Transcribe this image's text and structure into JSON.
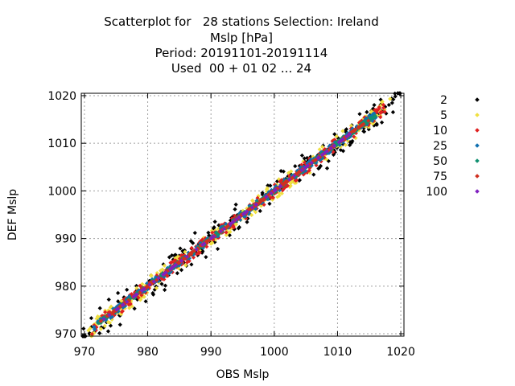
{
  "chart_data": {
    "type": "scatter",
    "title_lines": [
      "Scatterplot for   28 stations Selection: Ireland",
      "Mslp [hPa]",
      "Period: 20191101-20191114",
      "Used  00 + 01 02 ... 24"
    ],
    "xlabel": "OBS Mslp",
    "ylabel": "DEF Mslp",
    "xlim": [
      969.5,
      1020.5
    ],
    "ylim": [
      969.5,
      1020.5
    ],
    "xticks": [
      970,
      980,
      990,
      1000,
      1010,
      1020
    ],
    "yticks": [
      970,
      980,
      990,
      1000,
      1010,
      1020
    ],
    "grid": true,
    "legend_placement": "right",
    "series": [
      {
        "name": "2",
        "color": "#000000",
        "spread": 2.4,
        "range": [
          969.5,
          1020.0
        ]
      },
      {
        "name": "5",
        "color": "#f0e040",
        "spread": 1.8,
        "range": [
          970.5,
          1018.5
        ]
      },
      {
        "name": "10",
        "color": "#e02020",
        "spread": 1.3,
        "range": [
          971.0,
          1017.5
        ]
      },
      {
        "name": "25",
        "color": "#1070b0",
        "spread": 0.8,
        "range": [
          971.5,
          1016.5
        ]
      },
      {
        "name": "50",
        "color": "#109070",
        "spread": 0.4,
        "range": [
          972.0,
          1016.0
        ]
      },
      {
        "name": "75",
        "color": "#d03020",
        "spread": 0.2,
        "range": [
          972.5,
          1015.0
        ]
      },
      {
        "name": "100",
        "color": "#8020c0",
        "spread": 0.0,
        "range": [
          973.0,
          1012.0
        ]
      }
    ]
  }
}
